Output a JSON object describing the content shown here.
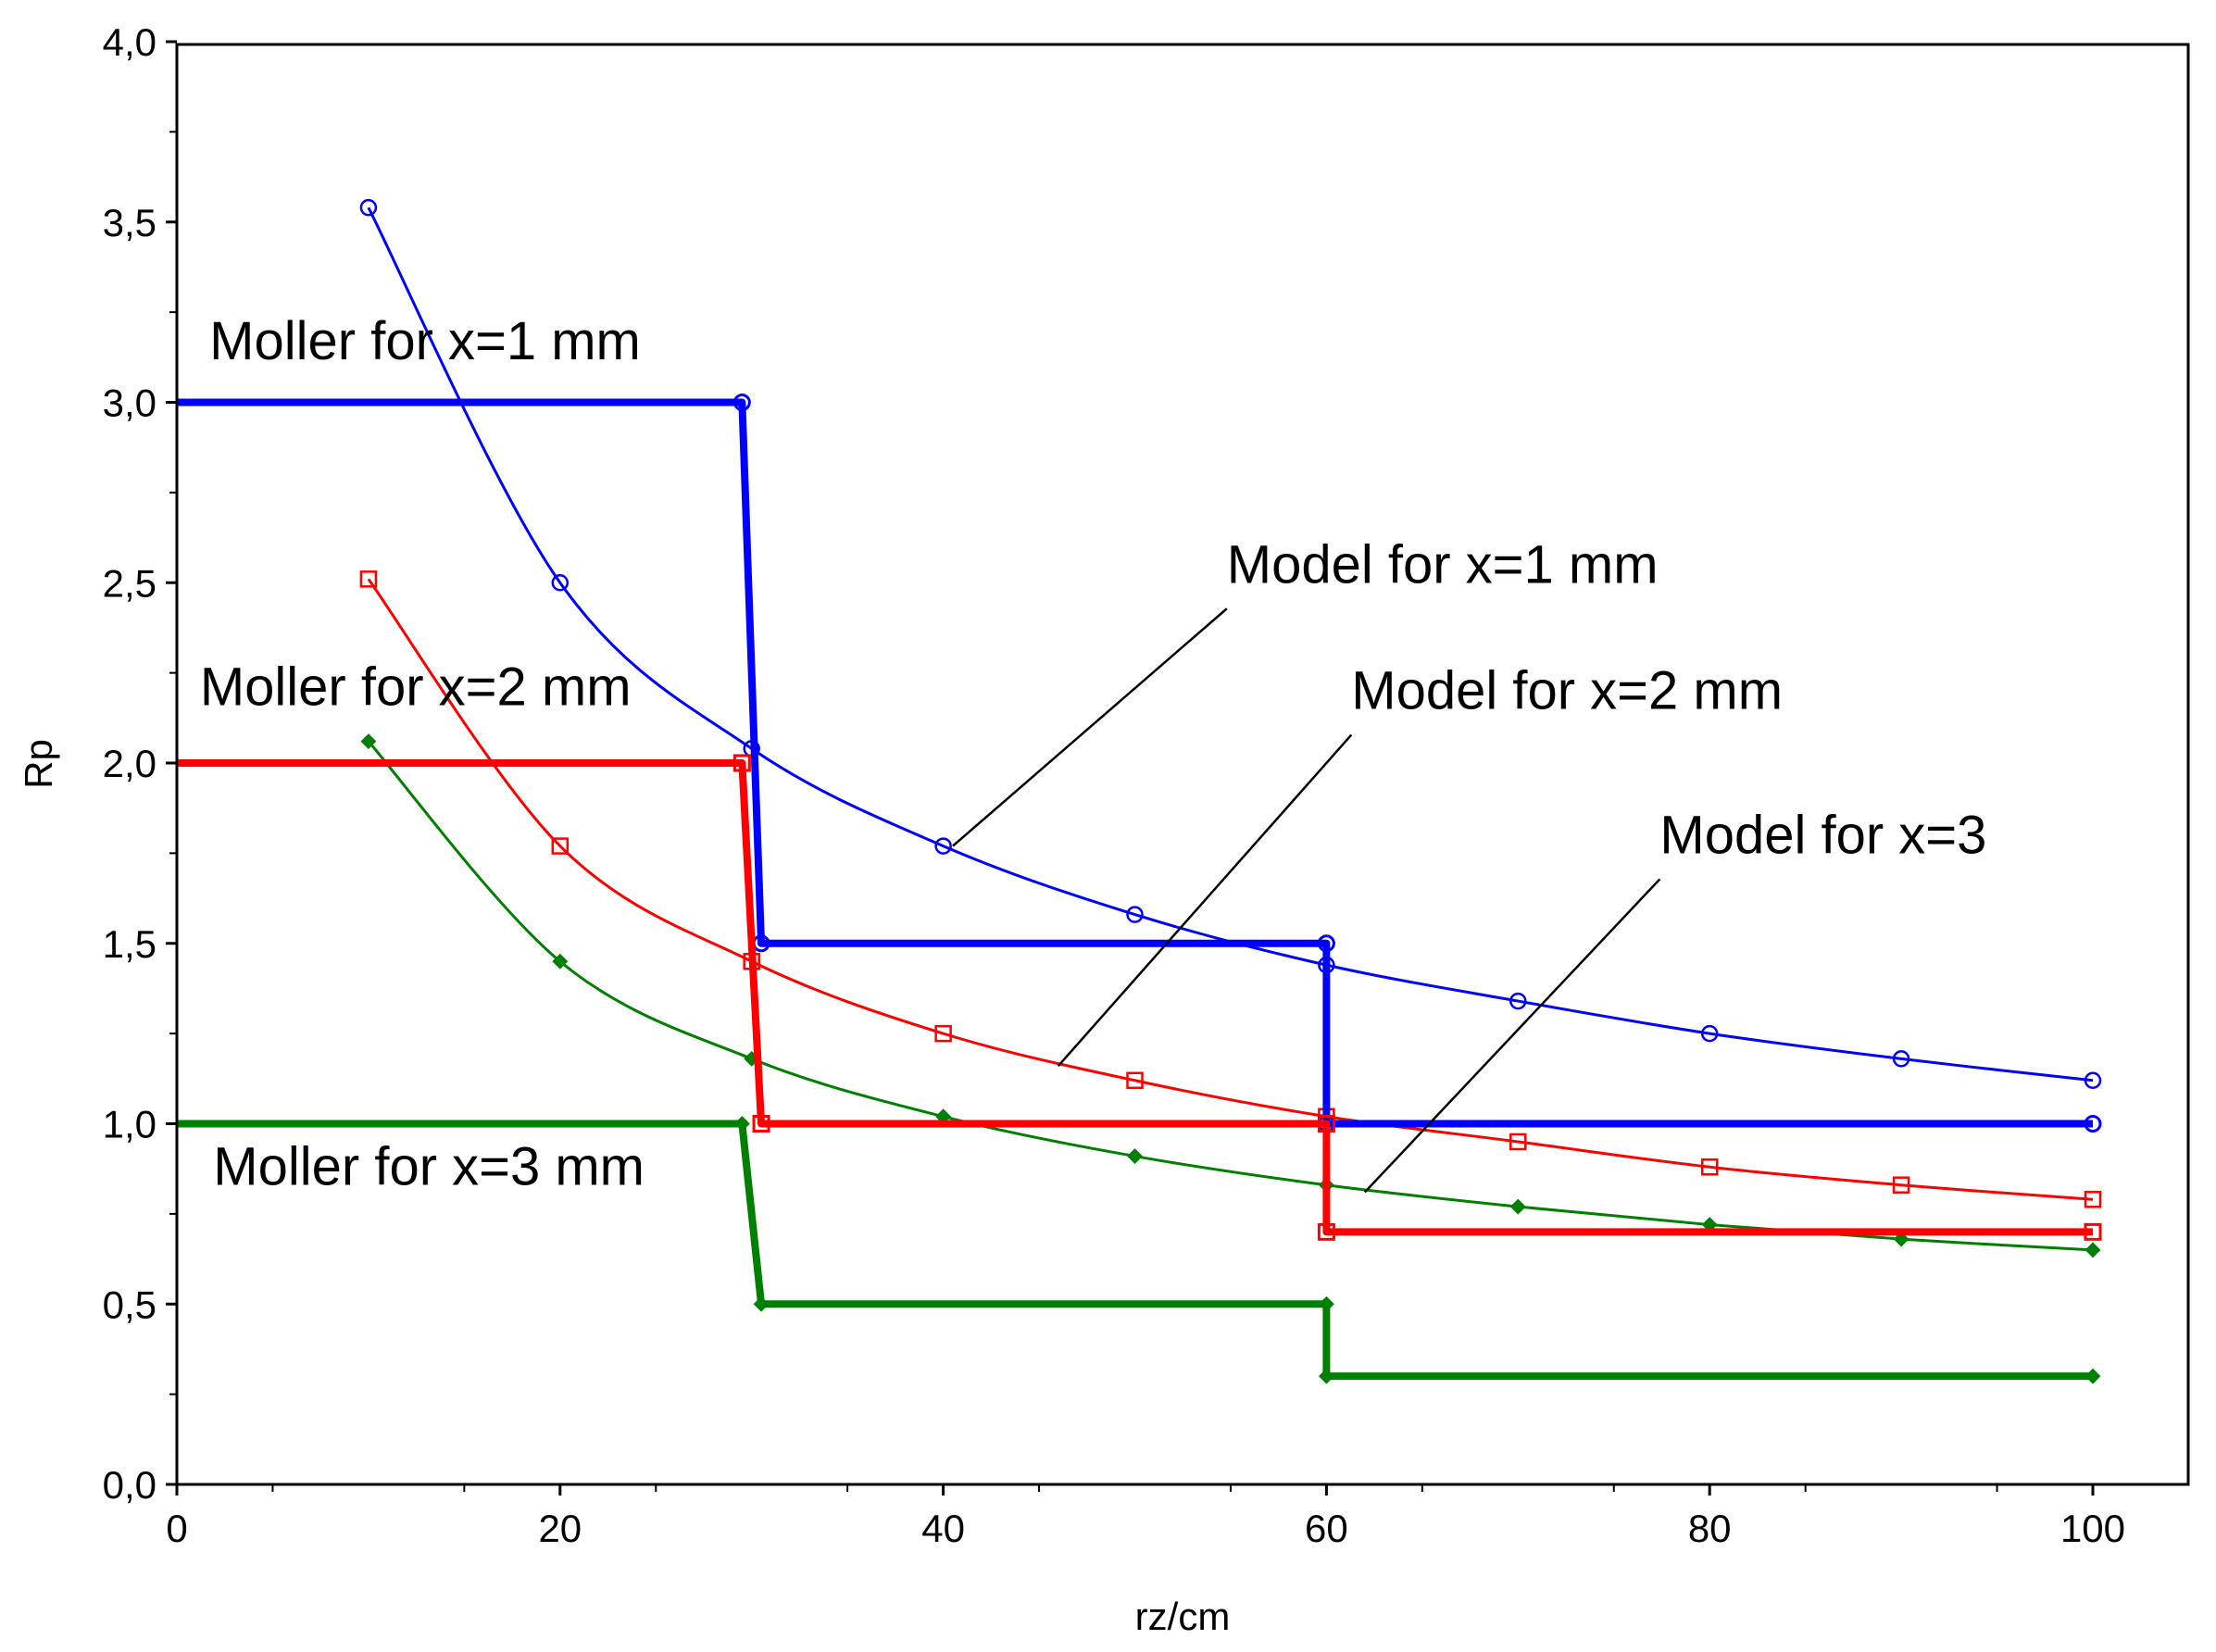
{
  "chart_data": {
    "type": "line",
    "title": "",
    "xlabel": "rz/cm",
    "ylabel": "Rp",
    "xlim": [
      0,
      105
    ],
    "ylim": [
      0,
      4
    ],
    "xticks": [
      0,
      20,
      40,
      60,
      80,
      100
    ],
    "xtick_labels": [
      "0",
      "20",
      "40",
      "60",
      "80",
      "100"
    ],
    "yticks": [
      0,
      0.5,
      1,
      1.5,
      2,
      2.5,
      3,
      3.5,
      4
    ],
    "ytick_labels": [
      "0,0",
      "0,5",
      "1,0",
      "1,5",
      "2,0",
      "2,5",
      "3,0",
      "3,5",
      "4,0"
    ],
    "grid": false,
    "series": [
      {
        "name": "Model for x=1 mm",
        "kind": "model",
        "color": "#0000ff",
        "marker": "circle",
        "x": [
          10,
          20,
          30,
          40,
          50,
          60,
          70,
          80,
          90,
          100
        ],
        "y": [
          3.54,
          2.5,
          2.04,
          1.77,
          1.58,
          1.44,
          1.34,
          1.25,
          1.18,
          1.12
        ]
      },
      {
        "name": "Model for x=2 mm",
        "kind": "model",
        "color": "#ff0000",
        "marker": "square",
        "x": [
          10,
          20,
          30,
          40,
          50,
          60,
          70,
          80,
          90,
          100
        ],
        "y": [
          2.51,
          1.77,
          1.45,
          1.25,
          1.12,
          1.02,
          0.95,
          0.88,
          0.83,
          0.79
        ]
      },
      {
        "name": "Model for x=3",
        "kind": "model",
        "color": "#008000",
        "marker": "diamond",
        "x": [
          10,
          20,
          30,
          40,
          50,
          60,
          70,
          80,
          90,
          100
        ],
        "y": [
          2.06,
          1.45,
          1.18,
          1.02,
          0.91,
          0.83,
          0.77,
          0.72,
          0.68,
          0.65
        ]
      },
      {
        "name": "Moller for x=1 mm",
        "kind": "moller",
        "color": "#0000ff",
        "marker": "circle",
        "x": [
          0,
          29.5,
          30.5,
          60,
          60,
          100
        ],
        "y": [
          3.0,
          3.0,
          1.5,
          1.5,
          1.0,
          1.0
        ]
      },
      {
        "name": "Moller for x=2 mm",
        "kind": "moller",
        "color": "#ff0000",
        "marker": "square",
        "x": [
          0,
          29.5,
          30.5,
          60,
          60,
          100
        ],
        "y": [
          2.0,
          2.0,
          1.0,
          1.0,
          0.7,
          0.7
        ]
      },
      {
        "name": "Moller for x=3 mm",
        "kind": "moller",
        "color": "#008000",
        "marker": "diamond",
        "x": [
          0,
          29.5,
          30.5,
          60,
          60,
          100
        ],
        "y": [
          1.0,
          1.0,
          0.5,
          0.5,
          0.3,
          0.3
        ]
      }
    ],
    "annotations": [
      {
        "text": "Moller for x=1 mm",
        "series": "Moller for x=1 mm",
        "x": 1.7,
        "y": 3.12
      },
      {
        "text": "Moller for x=2 mm",
        "series": "Moller for x=2 mm",
        "x": 1.2,
        "y": 2.16
      },
      {
        "text": "Moller for x=3 mm",
        "series": "Moller for x=3 mm",
        "x": 1.9,
        "y": 0.83
      },
      {
        "text": "Model for x=1 mm",
        "series": "Model for x=1 mm",
        "x": 54.8,
        "y": 2.5,
        "pointer_to": [
          40.5,
          1.77
        ]
      },
      {
        "text": "Model for x=2 mm",
        "series": "Model for x=2 mm",
        "x": 61.3,
        "y": 2.15,
        "pointer_to": [
          46.0,
          1.16
        ]
      },
      {
        "text": "Model for x=3",
        "series": "Model for x=3",
        "x": 77.4,
        "y": 1.75,
        "pointer_to": [
          62.0,
          0.81
        ]
      }
    ]
  }
}
